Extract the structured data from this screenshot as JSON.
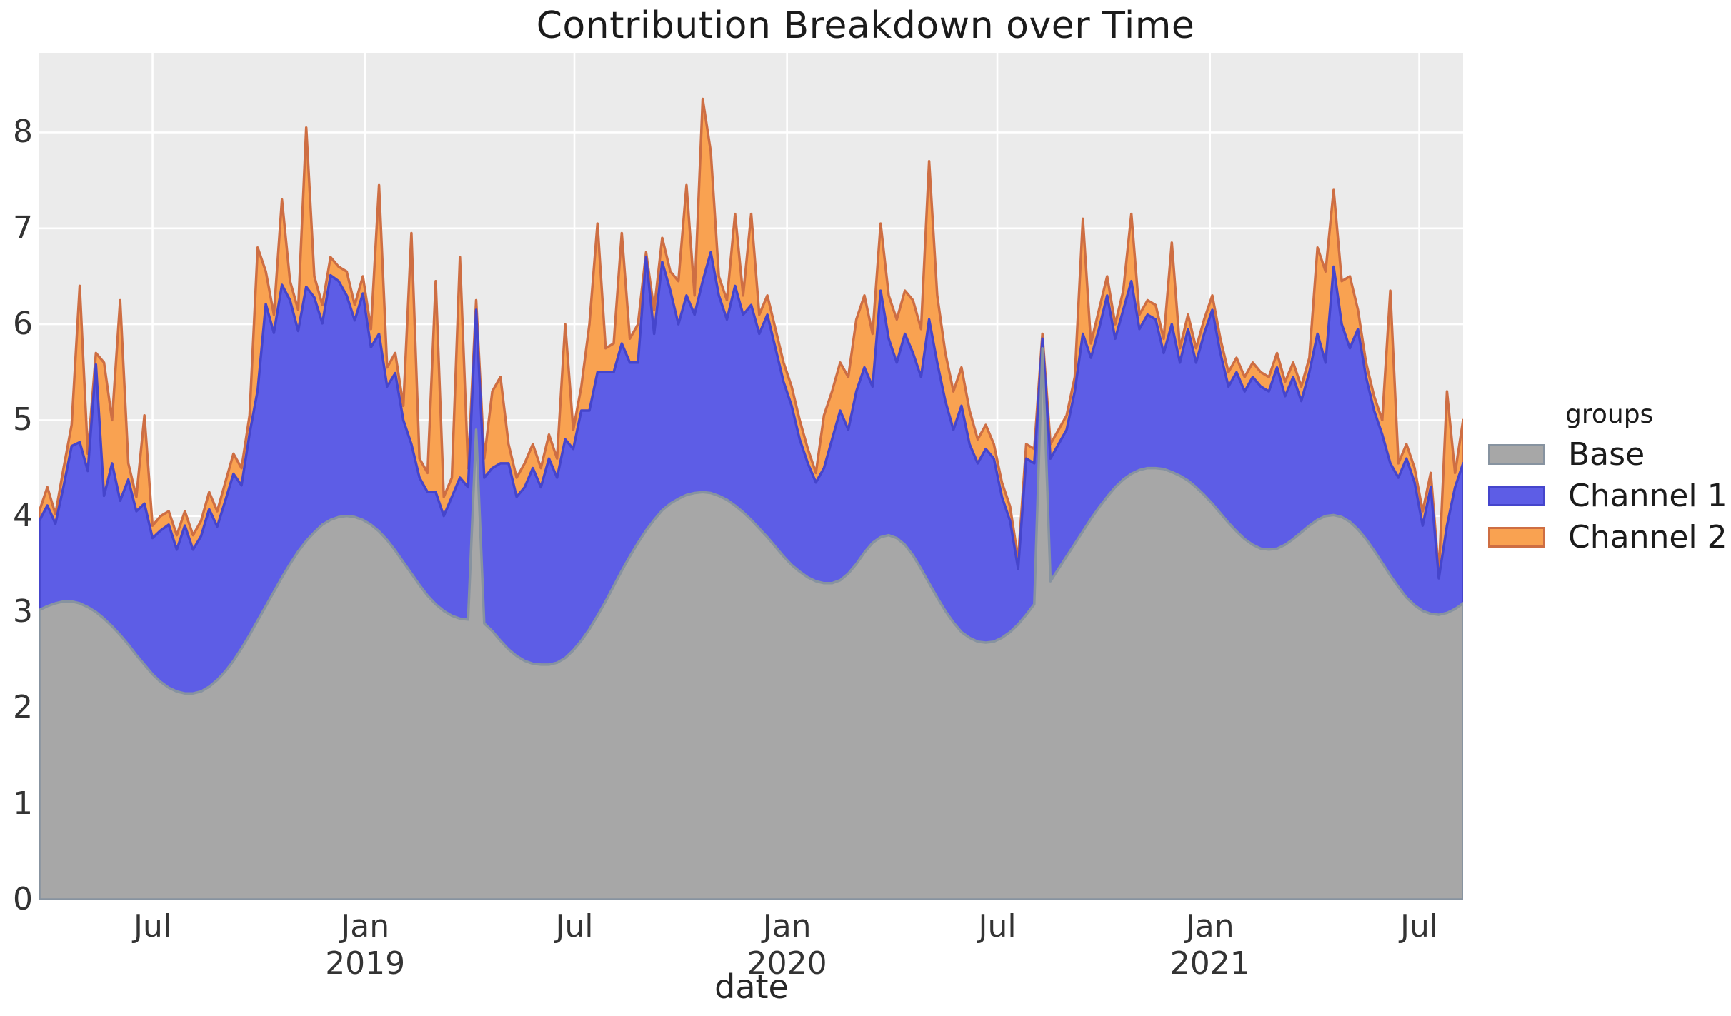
{
  "title": "Contribution Breakdown over Time",
  "x_axis": {
    "label": "date"
  },
  "y_axis": {
    "ticks": [
      "0",
      "1",
      "2",
      "3",
      "4",
      "5",
      "6",
      "7",
      "8"
    ]
  },
  "legend": {
    "title": "groups",
    "entries": [
      {
        "label": "Base",
        "fill": "#A7A7A7",
        "stroke": "#8793A0"
      },
      {
        "label": "Channel 1",
        "fill": "#5D5DE6",
        "stroke": "#4545CC"
      },
      {
        "label": "Channel 2",
        "fill": "#F9A251",
        "stroke": "#CE6E43"
      }
    ]
  },
  "colors": {
    "figure_bg": "#FFFFFF",
    "panel_bg": "#EBEBEB",
    "gridline": "#FFFFFF",
    "title_text": "#1B1B1B",
    "tick_text": "#333333",
    "axis_title_text": "#262626"
  },
  "chart_data": {
    "type": "area",
    "stacked": true,
    "title": "Contribution Breakdown over Time",
    "xlabel": "date",
    "ylabel": "",
    "legend_title": "groups",
    "legend_position": "right",
    "grid": "white major gridlines on gray panel",
    "ylim": [
      0,
      8.83
    ],
    "yticks": [
      0,
      1,
      2,
      3,
      4,
      5,
      6,
      7,
      8
    ],
    "start_date": "2018-03-25",
    "freq": "weekly",
    "n_points": 177,
    "xticks": [
      {
        "date": "2018-07-01",
        "label": "Jul"
      },
      {
        "date": "2019-01-01",
        "label": "Jan",
        "year": "2019"
      },
      {
        "date": "2019-07-01",
        "label": "Jul"
      },
      {
        "date": "2020-01-01",
        "label": "Jan",
        "year": "2020"
      },
      {
        "date": "2020-07-01",
        "label": "Jul"
      },
      {
        "date": "2021-01-01",
        "label": "Jan",
        "year": "2021"
      },
      {
        "date": "2021-07-01",
        "label": "Jul"
      }
    ],
    "series": [
      {
        "name": "Base",
        "fill": "#A7A7A7",
        "stroke": "#8793A0",
        "values": [
          3.02,
          3.06,
          3.09,
          3.11,
          3.11,
          3.09,
          3.05,
          3.0,
          2.93,
          2.85,
          2.76,
          2.66,
          2.55,
          2.45,
          2.35,
          2.27,
          2.21,
          2.17,
          2.15,
          2.15,
          2.17,
          2.22,
          2.29,
          2.38,
          2.49,
          2.62,
          2.76,
          2.91,
          3.06,
          3.21,
          3.36,
          3.5,
          3.63,
          3.74,
          3.83,
          3.91,
          3.96,
          3.99,
          4.0,
          3.99,
          3.96,
          3.91,
          3.84,
          3.75,
          3.64,
          3.52,
          3.4,
          3.28,
          3.17,
          3.08,
          3.01,
          2.96,
          2.93,
          2.92,
          4.9,
          2.88,
          2.8,
          2.7,
          2.61,
          2.54,
          2.49,
          2.46,
          2.45,
          2.45,
          2.47,
          2.52,
          2.6,
          2.7,
          2.82,
          2.96,
          3.11,
          3.27,
          3.43,
          3.58,
          3.72,
          3.85,
          3.96,
          4.06,
          4.13,
          4.18,
          4.22,
          4.24,
          4.25,
          4.24,
          4.21,
          4.17,
          4.11,
          4.04,
          3.96,
          3.87,
          3.78,
          3.68,
          3.58,
          3.49,
          3.42,
          3.36,
          3.32,
          3.3,
          3.3,
          3.33,
          3.4,
          3.5,
          3.62,
          3.72,
          3.78,
          3.8,
          3.77,
          3.7,
          3.59,
          3.45,
          3.3,
          3.15,
          3.01,
          2.89,
          2.79,
          2.73,
          2.69,
          2.68,
          2.69,
          2.73,
          2.79,
          2.87,
          2.97,
          3.08,
          5.75,
          3.32,
          3.45,
          3.58,
          3.71,
          3.84,
          3.97,
          4.09,
          4.2,
          4.3,
          4.38,
          4.44,
          4.48,
          4.5,
          4.5,
          4.49,
          4.46,
          4.42,
          4.37,
          4.3,
          4.22,
          4.13,
          4.03,
          3.93,
          3.84,
          3.76,
          3.7,
          3.66,
          3.65,
          3.66,
          3.7,
          3.76,
          3.83,
          3.9,
          3.96,
          4.0,
          4.01,
          3.99,
          3.94,
          3.86,
          3.76,
          3.64,
          3.51,
          3.38,
          3.26,
          3.15,
          3.07,
          3.01,
          2.98,
          2.97,
          2.99,
          3.03,
          3.09
        ]
      },
      {
        "name": "Channel 1",
        "fill": "#5D5DE6",
        "stroke": "#4545CC",
        "values": [
          0.93,
          1.05,
          0.83,
          1.2,
          1.62,
          1.68,
          1.42,
          2.58,
          1.28,
          1.7,
          1.4,
          1.72,
          1.5,
          1.68,
          1.42,
          1.58,
          1.7,
          1.48,
          1.75,
          1.5,
          1.62,
          1.85,
          1.6,
          1.78,
          1.95,
          1.7,
          2.1,
          2.4,
          3.15,
          2.7,
          3.05,
          2.75,
          2.3,
          2.65,
          2.45,
          2.1,
          2.55,
          2.46,
          2.3,
          2.05,
          2.36,
          1.85,
          2.06,
          1.6,
          1.85,
          1.48,
          1.35,
          1.12,
          1.08,
          1.17,
          0.99,
          1.24,
          1.47,
          1.38,
          1.25,
          1.52,
          1.7,
          1.85,
          1.94,
          1.66,
          1.81,
          2.04,
          1.85,
          2.15,
          1.93,
          2.28,
          2.1,
          2.4,
          2.28,
          2.54,
          2.39,
          2.23,
          2.37,
          2.02,
          1.88,
          2.85,
          1.94,
          2.59,
          2.22,
          1.82,
          2.08,
          1.86,
          2.2,
          2.51,
          2.09,
          1.88,
          2.29,
          2.06,
          2.24,
          2.03,
          2.32,
          2.07,
          1.82,
          1.66,
          1.38,
          1.19,
          1.03,
          1.2,
          1.5,
          1.77,
          1.5,
          1.8,
          1.93,
          1.63,
          2.57,
          2.05,
          1.83,
          2.2,
          2.11,
          2.0,
          2.75,
          2.45,
          2.19,
          2.01,
          2.36,
          2.02,
          1.86,
          2.02,
          1.91,
          1.47,
          1.16,
          0.58,
          1.63,
          1.47,
          0.1,
          1.28,
          1.3,
          1.32,
          1.59,
          2.06,
          1.68,
          1.86,
          2.1,
          1.55,
          1.77,
          2.01,
          1.47,
          1.6,
          1.55,
          1.21,
          1.54,
          1.18,
          1.58,
          1.3,
          1.68,
          2.02,
          1.67,
          1.42,
          1.66,
          1.54,
          1.75,
          1.69,
          1.65,
          1.89,
          1.55,
          1.69,
          1.37,
          1.6,
          1.94,
          1.6,
          2.59,
          2.01,
          1.81,
          2.09,
          1.69,
          1.46,
          1.34,
          1.17,
          1.14,
          1.45,
          1.28,
          0.89,
          1.32,
          0.38,
          0.91,
          1.27,
          1.46
        ]
      },
      {
        "name": "Channel 2",
        "fill": "#F9A251",
        "stroke": "#CE6E43",
        "values": [
          0.1,
          0.19,
          0.1,
          0.19,
          0.22,
          1.63,
          0.18,
          0.12,
          1.39,
          0.45,
          2.09,
          0.17,
          0.15,
          0.92,
          0.13,
          0.15,
          0.14,
          0.15,
          0.15,
          0.15,
          0.16,
          0.18,
          0.16,
          0.19,
          0.21,
          0.18,
          0.19,
          1.49,
          0.34,
          0.19,
          0.89,
          0.2,
          0.22,
          1.66,
          0.22,
          0.19,
          0.19,
          0.15,
          0.25,
          0.16,
          0.18,
          0.19,
          1.55,
          0.2,
          0.21,
          0.15,
          2.2,
          0.2,
          0.2,
          2.2,
          0.2,
          0.2,
          2.3,
          0.2,
          0.1,
          0.2,
          0.8,
          0.9,
          0.2,
          0.2,
          0.25,
          0.25,
          0.2,
          0.25,
          0.2,
          1.2,
          0.2,
          0.25,
          0.9,
          1.55,
          0.25,
          0.3,
          1.15,
          0.25,
          0.4,
          0.05,
          0.25,
          0.25,
          0.2,
          0.45,
          1.15,
          0.2,
          1.9,
          1.05,
          0.2,
          0.2,
          0.75,
          0.2,
          0.95,
          0.2,
          0.2,
          0.2,
          0.2,
          0.2,
          0.2,
          0.15,
          0.1,
          0.55,
          0.5,
          0.5,
          0.55,
          0.75,
          0.75,
          0.55,
          0.7,
          0.45,
          0.45,
          0.45,
          0.55,
          0.5,
          1.65,
          0.7,
          0.5,
          0.4,
          0.4,
          0.35,
          0.25,
          0.25,
          0.15,
          0.15,
          0.15,
          0.1,
          0.15,
          0.15,
          0.05,
          0.15,
          0.15,
          0.15,
          0.15,
          1.2,
          0.15,
          0.2,
          0.2,
          0.15,
          0.2,
          0.7,
          0.15,
          0.15,
          0.15,
          0.15,
          0.85,
          0.15,
          0.15,
          0.15,
          0.15,
          0.15,
          0.15,
          0.15,
          0.15,
          0.15,
          0.15,
          0.15,
          0.15,
          0.15,
          0.15,
          0.15,
          0.15,
          0.15,
          0.9,
          0.95,
          0.8,
          0.45,
          0.75,
          0.2,
          0.15,
          0.15,
          0.15,
          1.8,
          0.15,
          0.15,
          0.15,
          0.15,
          0.15,
          0.05,
          1.4,
          0.15,
          0.45
        ]
      }
    ]
  }
}
